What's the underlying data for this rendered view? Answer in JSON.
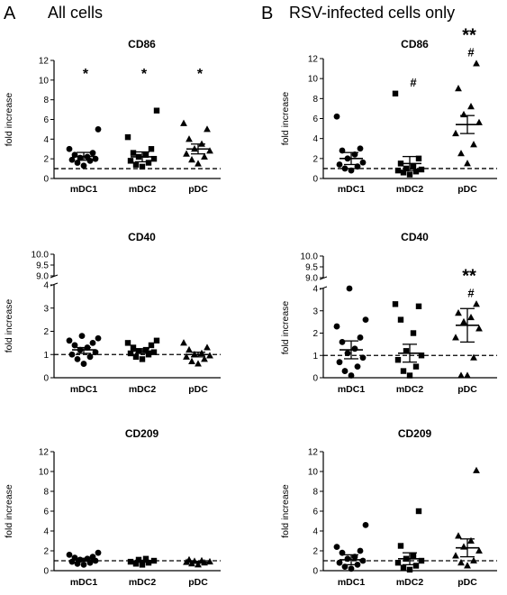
{
  "panels": [
    {
      "letter": "A",
      "title": "All cells"
    },
    {
      "letter": "B",
      "title": "RSV-infected cells only"
    }
  ],
  "chart_data": [
    {
      "type": "scatter",
      "panel": "A",
      "title": "CD86",
      "ylabel": "fold increase",
      "categories": [
        "mDC1",
        "mDC2",
        "pDC"
      ],
      "yticks": [
        0,
        2,
        4,
        6,
        8,
        10,
        12
      ],
      "ylim": [
        0,
        12
      ],
      "reference_line": 1,
      "series": [
        {
          "category": "mDC1",
          "marker": "circle",
          "values": [
            1.3,
            1.6,
            1.8,
            1.9,
            2.0,
            2.1,
            2.2,
            2.4,
            2.6,
            3.0,
            5.0
          ],
          "mean": 2.25,
          "sem_upper": 2.65,
          "sem_lower": 1.85,
          "annotations": [
            "*"
          ]
        },
        {
          "category": "mDC2",
          "marker": "square",
          "values": [
            1.2,
            1.4,
            1.6,
            1.8,
            2.0,
            2.2,
            2.4,
            2.6,
            3.0,
            4.2,
            6.9
          ],
          "mean": 2.2,
          "sem_upper": 2.7,
          "sem_lower": 1.7,
          "annotations": [
            "*"
          ]
        },
        {
          "category": "pDC",
          "marker": "triangle",
          "values": [
            1.5,
            1.9,
            2.2,
            2.5,
            2.8,
            3.0,
            3.5,
            4.0,
            5.0,
            5.6
          ],
          "mean": 3.0,
          "sem_upper": 3.5,
          "sem_lower": 2.5,
          "annotations": [
            "*"
          ]
        }
      ]
    },
    {
      "type": "scatter",
      "panel": "B",
      "title": "CD86",
      "ylabel": "fold increase",
      "categories": [
        "mDC1",
        "mDC2",
        "pDC"
      ],
      "yticks": [
        0,
        2,
        4,
        6,
        8,
        10,
        12
      ],
      "ylim": [
        0,
        12
      ],
      "reference_line": 1,
      "series": [
        {
          "category": "mDC1",
          "marker": "circle",
          "values": [
            0.8,
            1.0,
            1.2,
            1.4,
            1.6,
            2.0,
            2.4,
            2.8,
            3.0,
            6.2
          ],
          "mean": 2.0,
          "sem_upper": 2.6,
          "sem_lower": 1.4,
          "annotations": []
        },
        {
          "category": "mDC2",
          "marker": "square",
          "values": [
            0.4,
            0.6,
            0.7,
            0.8,
            0.9,
            1.0,
            1.2,
            1.5,
            2.0,
            8.5
          ],
          "mean": 1.5,
          "sem_upper": 2.2,
          "sem_lower": 0.8,
          "annotations": [
            "#"
          ]
        },
        {
          "category": "pDC",
          "marker": "triangle",
          "values": [
            1.5,
            2.5,
            3.4,
            4.5,
            5.6,
            6.4,
            7.2,
            9.0,
            11.5
          ],
          "mean": 5.4,
          "sem_upper": 6.3,
          "sem_lower": 4.5,
          "annotations": [
            "#",
            "**"
          ]
        }
      ]
    },
    {
      "type": "scatter",
      "panel": "A",
      "title": "CD40",
      "ylabel": "fold increase",
      "categories": [
        "mDC1",
        "mDC2",
        "pDC"
      ],
      "yticks": [
        0,
        1,
        2,
        3,
        4
      ],
      "yticks_upper": [
        "9.0",
        "9.5",
        "10.0"
      ],
      "ylim": [
        0,
        4
      ],
      "ylim_upper": [
        9,
        10
      ],
      "reference_line": 1,
      "series": [
        {
          "category": "mDC1",
          "marker": "circle",
          "values": [
            0.6,
            0.8,
            0.9,
            1.0,
            1.1,
            1.2,
            1.3,
            1.4,
            1.5,
            1.6,
            1.7,
            1.8
          ],
          "mean": 1.2,
          "sem_upper": 1.3,
          "sem_lower": 1.05,
          "annotations": []
        },
        {
          "category": "mDC2",
          "marker": "square",
          "values": [
            0.8,
            0.9,
            1.0,
            1.05,
            1.1,
            1.15,
            1.2,
            1.3,
            1.4,
            1.5,
            1.6
          ],
          "mean": 1.15,
          "sem_upper": 1.25,
          "sem_lower": 1.05,
          "annotations": []
        },
        {
          "category": "pDC",
          "marker": "triangle",
          "values": [
            0.6,
            0.7,
            0.8,
            0.9,
            0.95,
            1.0,
            1.05,
            1.2,
            1.3,
            1.5
          ],
          "mean": 1.0,
          "sem_upper": 1.1,
          "sem_lower": 0.9,
          "annotations": []
        }
      ]
    },
    {
      "type": "scatter",
      "panel": "B",
      "title": "CD40",
      "ylabel": "fold increase",
      "categories": [
        "mDC1",
        "mDC2",
        "pDC"
      ],
      "yticks": [
        0,
        1,
        2,
        3,
        4
      ],
      "yticks_upper": [
        "9.0",
        "9.5",
        "10.0"
      ],
      "ylim": [
        0,
        4
      ],
      "ylim_upper": [
        9,
        10
      ],
      "reference_line": 1,
      "series": [
        {
          "category": "mDC1",
          "marker": "circle",
          "values": [
            0.1,
            0.3,
            0.5,
            0.7,
            0.9,
            1.1,
            1.3,
            1.6,
            1.8,
            2.3,
            2.6,
            4.0
          ],
          "mean": 1.25,
          "sem_upper": 1.65,
          "sem_lower": 0.85,
          "annotations": []
        },
        {
          "category": "mDC2",
          "marker": "square",
          "values": [
            0.1,
            0.3,
            0.5,
            0.8,
            1.0,
            1.2,
            2.0,
            2.6,
            3.2,
            3.3
          ],
          "mean": 1.1,
          "sem_upper": 1.5,
          "sem_lower": 0.7,
          "annotations": []
        },
        {
          "category": "pDC",
          "marker": "triangle",
          "values": [
            0.1,
            0.1,
            0.9,
            1.8,
            2.2,
            2.5,
            2.7,
            2.9,
            3.3
          ],
          "mean": 2.35,
          "sem_upper": 3.1,
          "sem_lower": 1.6,
          "annotations": [
            "#",
            "**"
          ]
        }
      ]
    },
    {
      "type": "scatter",
      "panel": "A",
      "title": "CD209",
      "ylabel": "fold increase",
      "categories": [
        "mDC1",
        "mDC2",
        "pDC"
      ],
      "yticks": [
        0,
        2,
        4,
        6,
        8,
        10,
        12
      ],
      "ylim": [
        0,
        12
      ],
      "reference_line": 1,
      "series": [
        {
          "category": "mDC1",
          "marker": "circle",
          "values": [
            0.6,
            0.7,
            0.8,
            0.9,
            1.0,
            1.1,
            1.2,
            1.3,
            1.4,
            1.6,
            1.8
          ],
          "mean": 1.1,
          "sem_upper": 1.25,
          "sem_lower": 0.95,
          "annotations": []
        },
        {
          "category": "mDC2",
          "marker": "square",
          "values": [
            0.6,
            0.7,
            0.8,
            0.9,
            1.0,
            1.1,
            1.2
          ],
          "mean": 0.95,
          "sem_upper": 1.05,
          "sem_lower": 0.85,
          "annotations": []
        },
        {
          "category": "pDC",
          "marker": "triangle",
          "values": [
            0.6,
            0.7,
            0.8,
            0.85,
            0.9,
            0.95,
            1.0,
            1.1
          ],
          "mean": 0.85,
          "sem_upper": 0.95,
          "sem_lower": 0.75,
          "annotations": []
        }
      ]
    },
    {
      "type": "scatter",
      "panel": "B",
      "title": "CD209",
      "ylabel": "fold increase",
      "categories": [
        "mDC1",
        "mDC2",
        "pDC"
      ],
      "yticks": [
        0,
        2,
        4,
        6,
        8,
        10,
        12
      ],
      "ylim": [
        0,
        12
      ],
      "reference_line": 1,
      "series": [
        {
          "category": "mDC1",
          "marker": "circle",
          "values": [
            0.2,
            0.4,
            0.6,
            0.8,
            1.0,
            1.2,
            1.4,
            1.8,
            2.0,
            2.4,
            4.6
          ],
          "mean": 1.1,
          "sem_upper": 1.6,
          "sem_lower": 0.6,
          "annotations": []
        },
        {
          "category": "mDC2",
          "marker": "square",
          "values": [
            0.1,
            0.3,
            0.5,
            0.8,
            1.0,
            1.2,
            1.5,
            2.5,
            6.0
          ],
          "mean": 1.2,
          "sem_upper": 1.8,
          "sem_lower": 0.6,
          "annotations": []
        },
        {
          "category": "pDC",
          "marker": "triangle",
          "values": [
            0.5,
            0.8,
            1.0,
            1.5,
            2.0,
            2.4,
            3.0,
            3.5,
            10.1
          ],
          "mean": 2.3,
          "sem_upper": 3.2,
          "sem_lower": 1.4,
          "annotations": []
        }
      ]
    }
  ]
}
